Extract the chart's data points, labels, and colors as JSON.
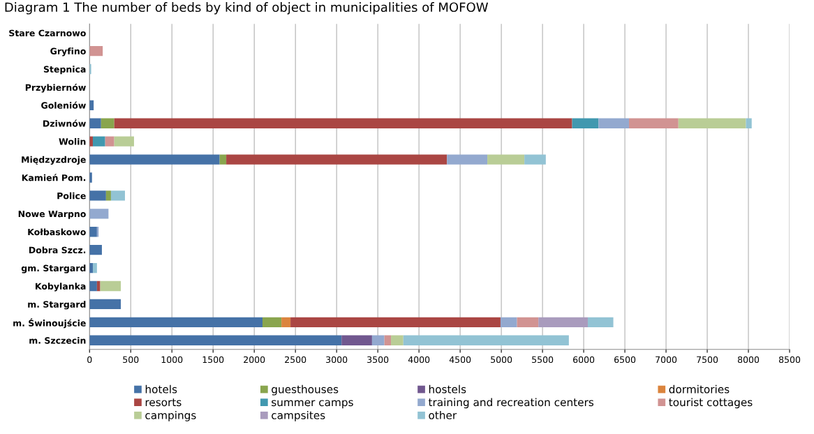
{
  "chart_data": {
    "type": "bar",
    "orientation": "horizontal",
    "stacked": true,
    "title": "Diagram 1 The number of beds by kind of object in municipalities of MOFOW",
    "categories": [
      "Stare Czarnowo",
      "Gryfino",
      "Stepnica",
      "Przybiernów",
      "Goleniów",
      "Dziwnów",
      "Wolin",
      "Międzyzdroje",
      "Kamień Pom.",
      "Police",
      "Nowe Warpno",
      "Kołbaskowo",
      "Dobra Szcz.",
      "gm. Stargard",
      "Kobylanka",
      "m. Stargard",
      "m. Świnoujście",
      "m. Szczecin"
    ],
    "series": [
      {
        "name": "hotels",
        "color": "#4572a7",
        "values": [
          null,
          null,
          null,
          null,
          50,
          140,
          null,
          1580,
          30,
          200,
          null,
          90,
          150,
          40,
          90,
          380,
          2100,
          3060
        ]
      },
      {
        "name": "guesthouses",
        "color": "#89a54e",
        "values": [
          null,
          null,
          null,
          null,
          null,
          160,
          null,
          80,
          null,
          60,
          null,
          null,
          null,
          null,
          null,
          null,
          230,
          null
        ]
      },
      {
        "name": "hostels",
        "color": "#71588f",
        "values": [
          null,
          null,
          null,
          null,
          null,
          null,
          null,
          null,
          null,
          null,
          null,
          null,
          null,
          null,
          null,
          null,
          null,
          370
        ]
      },
      {
        "name": "dormitories",
        "color": "#db843d",
        "values": [
          null,
          null,
          null,
          null,
          null,
          null,
          null,
          null,
          null,
          null,
          null,
          null,
          null,
          null,
          null,
          null,
          110,
          null
        ]
      },
      {
        "name": "resorts",
        "color": "#aa4643",
        "values": [
          null,
          null,
          null,
          null,
          null,
          5560,
          40,
          2680,
          null,
          null,
          null,
          null,
          null,
          null,
          40,
          null,
          2550,
          null
        ]
      },
      {
        "name": "summer camps",
        "color": "#4198af",
        "values": [
          null,
          null,
          null,
          null,
          null,
          320,
          150,
          null,
          null,
          null,
          null,
          null,
          null,
          null,
          null,
          null,
          null,
          null
        ]
      },
      {
        "name": "training and recreation centers",
        "color": "#93a9cf",
        "values": [
          null,
          null,
          null,
          null,
          null,
          370,
          null,
          490,
          null,
          null,
          230,
          20,
          null,
          null,
          null,
          null,
          200,
          150
        ]
      },
      {
        "name": "tourist cottages",
        "color": "#d19392",
        "values": [
          null,
          160,
          null,
          null,
          null,
          600,
          110,
          null,
          null,
          null,
          null,
          null,
          null,
          null,
          null,
          null,
          260,
          80
        ]
      },
      {
        "name": "campings",
        "color": "#b9cd96",
        "values": [
          null,
          null,
          null,
          null,
          null,
          820,
          240,
          450,
          null,
          null,
          null,
          null,
          null,
          null,
          250,
          null,
          null,
          150
        ]
      },
      {
        "name": "campsites",
        "color": "#a99bbd",
        "values": [
          null,
          null,
          null,
          null,
          null,
          null,
          null,
          null,
          null,
          null,
          null,
          null,
          null,
          null,
          null,
          null,
          600,
          null
        ]
      },
      {
        "name": "other",
        "color": "#92c3d4",
        "values": [
          null,
          null,
          20,
          null,
          null,
          70,
          null,
          260,
          null,
          170,
          null,
          null,
          null,
          50,
          null,
          null,
          310,
          2010
        ]
      }
    ],
    "xlim": [
      0,
      8500
    ],
    "xticks": [
      0,
      500,
      1000,
      1500,
      2000,
      2500,
      3000,
      3500,
      4000,
      4500,
      5000,
      5500,
      6000,
      6500,
      7000,
      7500,
      8000,
      8500
    ],
    "grid": "x",
    "legend": "bottom"
  }
}
